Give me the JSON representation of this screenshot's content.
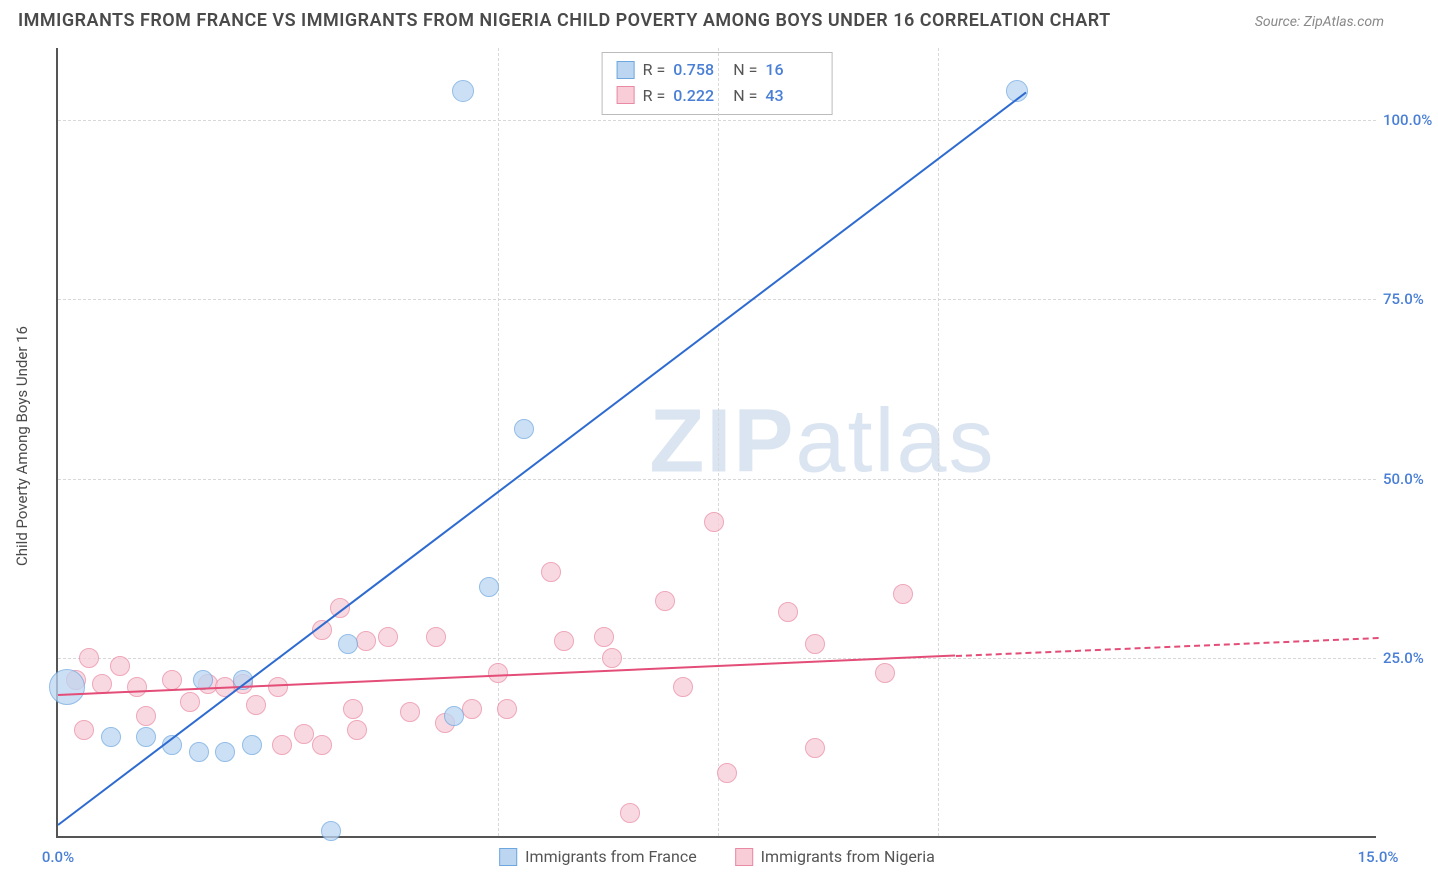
{
  "title": "IMMIGRANTS FROM FRANCE VS IMMIGRANTS FROM NIGERIA CHILD POVERTY AMONG BOYS UNDER 16 CORRELATION CHART",
  "source": "Source: ZipAtlas.com",
  "watermark_bold": "ZIP",
  "watermark_thin": "atlas",
  "y_axis_title": "Child Poverty Among Boys Under 16",
  "chart": {
    "type": "scatter",
    "x_range": [
      0.0,
      15.0
    ],
    "y_range": [
      0.0,
      110.0
    ],
    "y_ticks": [
      25.0,
      50.0,
      75.0,
      100.0
    ],
    "y_tick_labels": [
      "25.0%",
      "50.0%",
      "75.0%",
      "100.0%"
    ],
    "y_tick_color": "#4a7fd6",
    "x_ticks": [
      0.0,
      15.0
    ],
    "x_tick_labels": [
      "0.0%",
      "15.0%"
    ],
    "x_tick_color": "#4a7fd6",
    "x_minor_ticks": [
      5.0,
      7.5,
      10.0
    ],
    "grid_color": "#d8d8d8",
    "background": "#ffffff"
  },
  "series": {
    "france": {
      "label": "Immigrants from France",
      "color_fill": "#bcd6f2",
      "color_stroke": "#6ea7e0",
      "trend_color": "#2e6bd0",
      "R": "0.758",
      "N": "16",
      "point_radius": 10,
      "trend": {
        "x1": 0.0,
        "y1": 2.0,
        "x2": 11.0,
        "y2": 104.0
      },
      "points": [
        {
          "x": 0.1,
          "y": 21.0,
          "r": 18
        },
        {
          "x": 0.6,
          "y": 14.0,
          "r": 10
        },
        {
          "x": 1.0,
          "y": 14.0,
          "r": 10
        },
        {
          "x": 1.3,
          "y": 13.0,
          "r": 10
        },
        {
          "x": 1.6,
          "y": 12.0,
          "r": 10
        },
        {
          "x": 1.65,
          "y": 22.0,
          "r": 10
        },
        {
          "x": 1.9,
          "y": 12.0,
          "r": 10
        },
        {
          "x": 2.1,
          "y": 22.0,
          "r": 10
        },
        {
          "x": 2.2,
          "y": 13.0,
          "r": 10
        },
        {
          "x": 3.1,
          "y": 1.0,
          "r": 10
        },
        {
          "x": 3.3,
          "y": 27.0,
          "r": 10
        },
        {
          "x": 4.5,
          "y": 17.0,
          "r": 10
        },
        {
          "x": 4.6,
          "y": 104.0,
          "r": 11
        },
        {
          "x": 4.9,
          "y": 35.0,
          "r": 10
        },
        {
          "x": 5.3,
          "y": 57.0,
          "r": 10
        },
        {
          "x": 10.9,
          "y": 104.0,
          "r": 11
        }
      ]
    },
    "nigeria": {
      "label": "Immigrants from Nigeria",
      "color_fill": "#f8cdd7",
      "color_stroke": "#e98aa4",
      "trend_color": "#e34d77",
      "R": "0.222",
      "N": "43",
      "point_radius": 10,
      "trend_solid": {
        "x1": 0.0,
        "y1": 20.0,
        "x2": 10.2,
        "y2": 25.5
      },
      "trend_dash": {
        "x1": 10.2,
        "y1": 25.5,
        "x2": 15.0,
        "y2": 28.0
      },
      "points": [
        {
          "x": 0.2,
          "y": 22.0
        },
        {
          "x": 0.3,
          "y": 15.0
        },
        {
          "x": 0.35,
          "y": 25.0
        },
        {
          "x": 0.5,
          "y": 21.5
        },
        {
          "x": 0.7,
          "y": 24.0
        },
        {
          "x": 0.9,
          "y": 21.0
        },
        {
          "x": 1.0,
          "y": 17.0
        },
        {
          "x": 1.3,
          "y": 22.0
        },
        {
          "x": 1.5,
          "y": 19.0
        },
        {
          "x": 1.7,
          "y": 21.5
        },
        {
          "x": 1.9,
          "y": 21.0
        },
        {
          "x": 2.1,
          "y": 21.5
        },
        {
          "x": 2.25,
          "y": 18.5
        },
        {
          "x": 2.5,
          "y": 21.0
        },
        {
          "x": 2.55,
          "y": 13.0
        },
        {
          "x": 2.8,
          "y": 14.5
        },
        {
          "x": 3.0,
          "y": 13.0
        },
        {
          "x": 3.0,
          "y": 29.0
        },
        {
          "x": 3.2,
          "y": 32.0
        },
        {
          "x": 3.35,
          "y": 18.0
        },
        {
          "x": 3.4,
          "y": 15.0
        },
        {
          "x": 3.5,
          "y": 27.5
        },
        {
          "x": 3.75,
          "y": 28.0
        },
        {
          "x": 4.0,
          "y": 17.5
        },
        {
          "x": 4.3,
          "y": 28.0
        },
        {
          "x": 4.4,
          "y": 16.0
        },
        {
          "x": 4.7,
          "y": 18.0
        },
        {
          "x": 5.0,
          "y": 23.0
        },
        {
          "x": 5.1,
          "y": 18.0
        },
        {
          "x": 5.6,
          "y": 37.0
        },
        {
          "x": 5.75,
          "y": 27.5
        },
        {
          "x": 6.2,
          "y": 28.0
        },
        {
          "x": 6.3,
          "y": 25.0
        },
        {
          "x": 6.5,
          "y": 3.5
        },
        {
          "x": 6.9,
          "y": 33.0
        },
        {
          "x": 7.1,
          "y": 21.0
        },
        {
          "x": 7.45,
          "y": 44.0
        },
        {
          "x": 7.6,
          "y": 9.0
        },
        {
          "x": 8.3,
          "y": 31.5
        },
        {
          "x": 8.6,
          "y": 27.0
        },
        {
          "x": 8.6,
          "y": 12.5
        },
        {
          "x": 9.4,
          "y": 23.0
        },
        {
          "x": 9.6,
          "y": 34.0
        }
      ]
    }
  },
  "r_box": {
    "row1_R_label": "R =",
    "row1_N_label": "N =",
    "value_color": "#4a7fd6"
  }
}
